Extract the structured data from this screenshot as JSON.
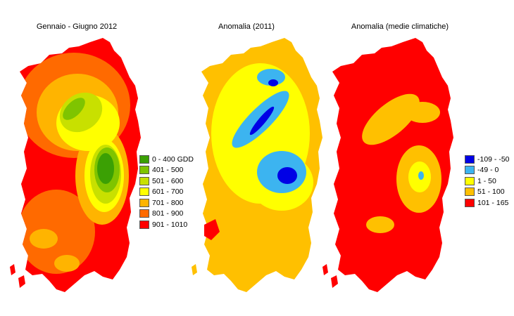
{
  "panels": [
    {
      "title": "Gennaio - Giugno 2012",
      "legend": [
        {
          "label": "0 - 400 GDD",
          "color": "#3ba004"
        },
        {
          "label": "401 - 500",
          "color": "#7fc400"
        },
        {
          "label": "501 - 600",
          "color": "#c8e000"
        },
        {
          "label": "601 - 700",
          "color": "#ffff00"
        },
        {
          "label": "701 - 800",
          "color": "#ffb400"
        },
        {
          "label": "801 - 900",
          "color": "#ff6a00"
        },
        {
          "label": "901 - 1010",
          "color": "#ff0000"
        }
      ]
    },
    {
      "title": "Anomalia (2011)",
      "legend": []
    },
    {
      "title": "Anomalia (medie climatiche)",
      "legend": [
        {
          "label": "-109 - -50",
          "color": "#0000e6"
        },
        {
          "label": "-49 - 0",
          "color": "#3cb4f0"
        },
        {
          "label": "1 - 50",
          "color": "#ffff00"
        },
        {
          "label": "51 - 100",
          "color": "#ffc000"
        },
        {
          "label": "101 - 165",
          "color": "#ff0000"
        }
      ]
    }
  ]
}
